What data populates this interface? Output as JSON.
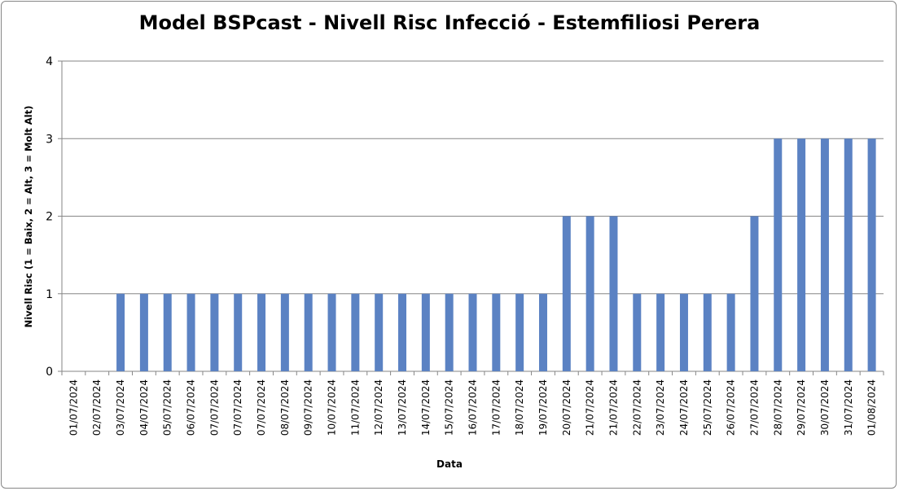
{
  "chart_data": {
    "type": "bar",
    "title": "Model BSPcast - Nivell Risc Infecció - Estemfiliosi Perera",
    "xlabel": "Data",
    "ylabel": "Nivell Risc (1 = Baix, 2 = Alt, 3 = Molt Alt)",
    "ylim": [
      0,
      4
    ],
    "yticks": [
      0,
      1,
      2,
      3,
      4
    ],
    "grid": true,
    "bar_color": "#5B82C3",
    "categories": [
      "01/07/2024",
      "02/07/2024",
      "03/07/2024",
      "04/07/2024",
      "05/07/2024",
      "06/07/2024",
      "07/07/2024",
      "07/07/2024",
      "07/07/2024",
      "08/07/2024",
      "09/07/2024",
      "10/07/2024",
      "11/07/2024",
      "12/07/2024",
      "13/07/2024",
      "14/07/2024",
      "15/07/2024",
      "16/07/2024",
      "17/07/2024",
      "18/07/2024",
      "19/07/2024",
      "20/07/2024",
      "21/07/2024",
      "21/07/2024",
      "22/07/2024",
      "23/07/2024",
      "24/07/2024",
      "25/07/2024",
      "26/07/2024",
      "27/07/2024",
      "28/07/2024",
      "29/07/2024",
      "30/07/2024",
      "31/07/2024",
      "01/08/2024"
    ],
    "values": [
      0,
      0,
      1,
      1,
      1,
      1,
      1,
      1,
      1,
      1,
      1,
      1,
      1,
      1,
      1,
      1,
      1,
      1,
      1,
      1,
      1,
      2,
      2,
      2,
      1,
      1,
      1,
      1,
      1,
      2,
      3,
      3,
      3,
      3,
      3
    ]
  }
}
